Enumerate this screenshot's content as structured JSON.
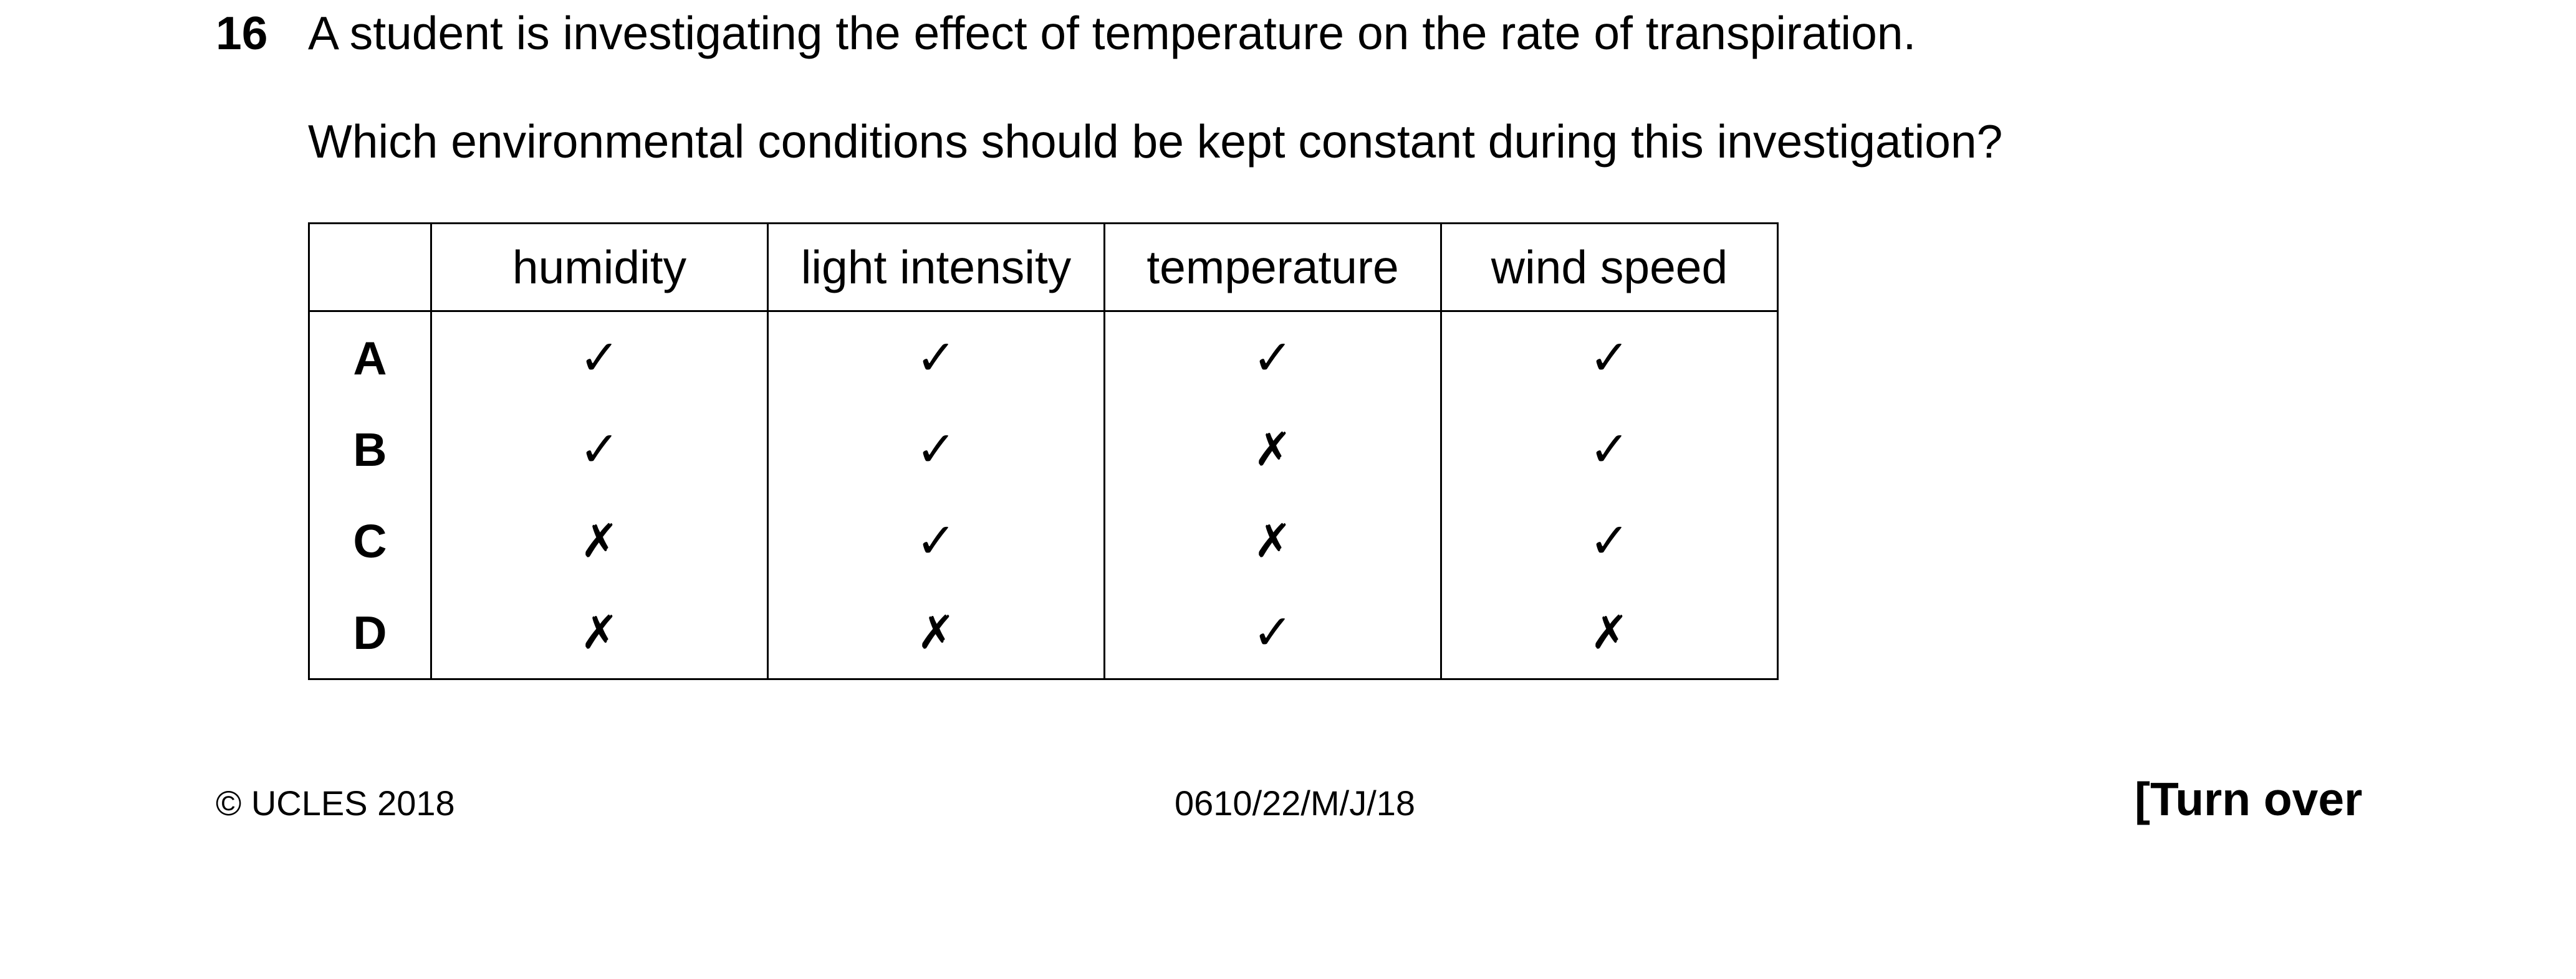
{
  "question": {
    "number": "16",
    "stem": "A student is investigating the effect of temperature on the rate of transpiration.",
    "prompt": "Which environmental conditions should be kept constant during this investigation?"
  },
  "table": {
    "columns": [
      "humidity",
      "light intensity",
      "temperature",
      "wind speed"
    ],
    "rows": [
      {
        "label": "A",
        "cells": [
          "✓",
          "✓",
          "✓",
          "✓"
        ]
      },
      {
        "label": "B",
        "cells": [
          "✓",
          "✓",
          "✗",
          "✓"
        ]
      },
      {
        "label": "C",
        "cells": [
          "✗",
          "✓",
          "✗",
          "✓"
        ]
      },
      {
        "label": "D",
        "cells": [
          "✗",
          "✗",
          "✓",
          "✗"
        ]
      }
    ]
  },
  "footer": {
    "copyright": "© UCLES 2018",
    "code": "0610/22/M/J/18",
    "turn_over": "[Turn over"
  }
}
